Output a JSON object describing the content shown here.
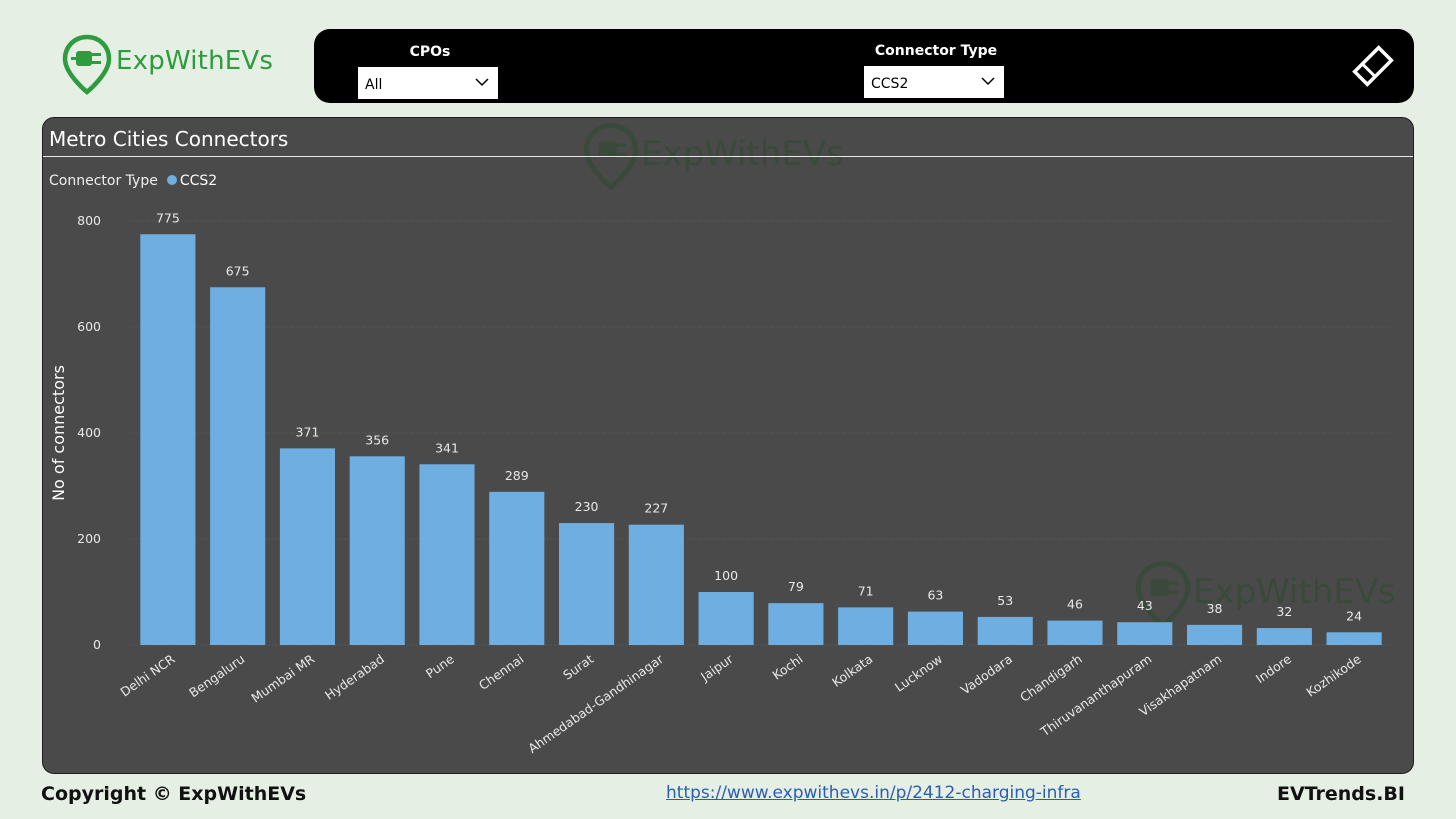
{
  "brand": {
    "name": "ExpWithEVs",
    "color": "#2e9b3f"
  },
  "filters": {
    "cpo": {
      "label": "CPOs",
      "value": "All"
    },
    "connector": {
      "label": "Connector Type",
      "value": "CCS2"
    },
    "clear_icon": "eraser-icon"
  },
  "panel": {
    "title": "Metro Cities Connectors"
  },
  "legend": {
    "title": "Connector Type",
    "item": "CCS2"
  },
  "chart_data": {
    "type": "bar",
    "title": "Metro Cities Connectors",
    "xlabel": "",
    "ylabel": "No of connectors",
    "ylim": [
      0,
      800
    ],
    "yticks": [
      0,
      200,
      400,
      600,
      800
    ],
    "grid": true,
    "legend": "top-left",
    "categories": [
      "Delhi NCR",
      "Bengaluru",
      "Mumbai MR",
      "Hyderabad",
      "Pune",
      "Chennai",
      "Surat",
      "Ahmedabad-Gandhinagar",
      "Jaipur",
      "Kochi",
      "Kolkata",
      "Lucknow",
      "Vadodara",
      "Chandigarh",
      "Thiruvananthapuram",
      "Visakhapatnam",
      "Indore",
      "Kozhikode"
    ],
    "series": [
      {
        "name": "CCS2",
        "color": "#6eaee0",
        "values": [
          775,
          675,
          371,
          356,
          341,
          289,
          230,
          227,
          100,
          79,
          71,
          63,
          53,
          46,
          43,
          38,
          32,
          24
        ]
      }
    ]
  },
  "footer": {
    "copyright": "Copyright © ExpWithEVs",
    "link": "https://www.expwithevs.in/p/2412-charging-infra",
    "brand": "EVTrends.BI"
  }
}
